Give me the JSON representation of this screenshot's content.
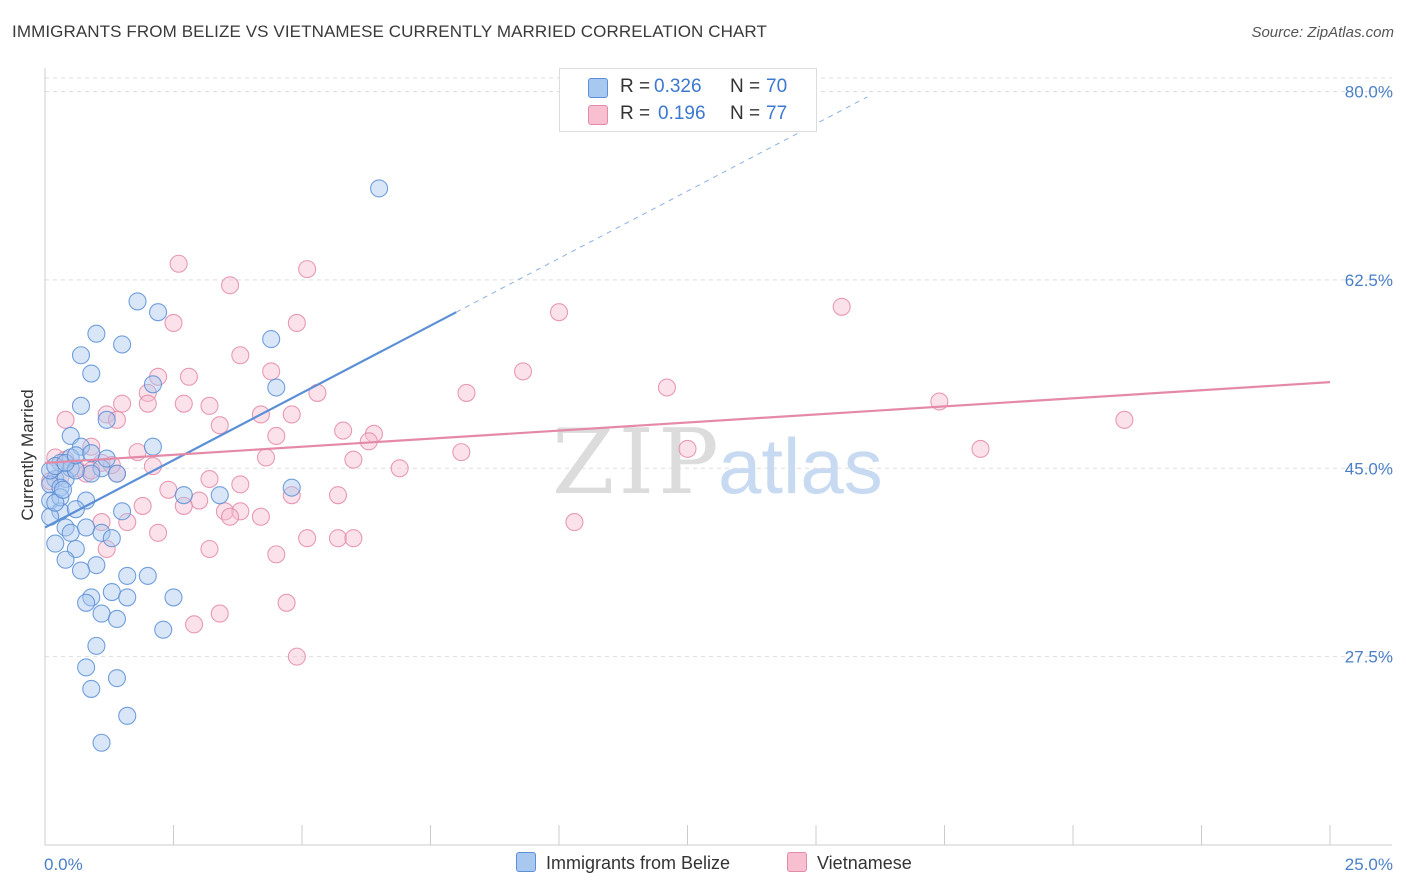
{
  "title": "IMMIGRANTS FROM BELIZE VS VIETNAMESE CURRENTLY MARRIED CORRELATION CHART",
  "source": "Source: ZipAtlas.com",
  "watermark": {
    "zip": "ZIP",
    "atlas": "atlas"
  },
  "legend": [
    {
      "r_label": "R =",
      "r_value": "0.326",
      "n_label": "N =",
      "n_value": "70",
      "color": "#a9c8f0",
      "stroke": "#5b8fd6"
    },
    {
      "r_label": "R =",
      "r_value": "0.196",
      "n_label": "N =",
      "n_value": "77",
      "color": "#f7bfd0",
      "stroke": "#e48aa8"
    }
  ],
  "bottom_legend": [
    {
      "label": "Immigrants from Belize",
      "color": "#a9c8f0",
      "stroke": "#5b8fd6"
    },
    {
      "label": "Vietnamese",
      "color": "#f7bfd0",
      "stroke": "#e48aa8"
    }
  ],
  "chart_data": {
    "type": "scatter",
    "xlabel": "",
    "ylabel": "Currently Married",
    "xlim": [
      0,
      25
    ],
    "ylim": [
      10,
      82
    ],
    "x_tick_labels": [
      "0.0%",
      "25.0%"
    ],
    "y_ticks": [
      27.5,
      45.0,
      62.5,
      80.0
    ],
    "y_tick_labels": [
      "27.5%",
      "45.0%",
      "62.5%",
      "80.0%"
    ],
    "grid": true,
    "series": [
      {
        "name": "Immigrants from Belize",
        "color": "#5b8fd6",
        "fill": "#a9c8f0",
        "trend": {
          "x": [
            0.0,
            8.0
          ],
          "y": [
            39.5,
            59.5
          ],
          "dashed_to": [
            16.0,
            79.5
          ]
        },
        "points": [
          [
            6.5,
            71.0
          ],
          [
            1.8,
            60.5
          ],
          [
            2.2,
            59.5
          ],
          [
            1.0,
            57.5
          ],
          [
            1.5,
            56.5
          ],
          [
            0.7,
            55.5
          ],
          [
            4.4,
            57.0
          ],
          [
            0.9,
            53.8
          ],
          [
            2.1,
            52.8
          ],
          [
            4.5,
            52.5
          ],
          [
            0.7,
            50.8
          ],
          [
            1.2,
            49.5
          ],
          [
            0.5,
            48.0
          ],
          [
            0.7,
            47.0
          ],
          [
            2.1,
            47.0
          ],
          [
            0.5,
            46.0
          ],
          [
            0.3,
            45.5
          ],
          [
            0.5,
            45.0
          ],
          [
            1.1,
            45.0
          ],
          [
            0.9,
            44.5
          ],
          [
            1.4,
            44.5
          ],
          [
            0.2,
            44.0
          ],
          [
            0.4,
            44.0
          ],
          [
            0.6,
            44.8
          ],
          [
            0.1,
            43.5
          ],
          [
            0.3,
            43.2
          ],
          [
            0.1,
            42.0
          ],
          [
            0.8,
            42.0
          ],
          [
            0.3,
            41.0
          ],
          [
            2.7,
            42.5
          ],
          [
            1.5,
            41.0
          ],
          [
            3.4,
            42.5
          ],
          [
            4.8,
            43.2
          ],
          [
            0.1,
            40.5
          ],
          [
            0.4,
            39.5
          ],
          [
            0.2,
            38.0
          ],
          [
            0.5,
            39.0
          ],
          [
            0.8,
            39.5
          ],
          [
            1.1,
            39.0
          ],
          [
            1.3,
            38.5
          ],
          [
            0.6,
            37.5
          ],
          [
            1.0,
            36.0
          ],
          [
            0.7,
            35.5
          ],
          [
            0.4,
            36.5
          ],
          [
            1.6,
            35.0
          ],
          [
            2.0,
            35.0
          ],
          [
            1.3,
            33.5
          ],
          [
            0.9,
            33.0
          ],
          [
            1.6,
            33.0
          ],
          [
            0.8,
            32.5
          ],
          [
            2.5,
            33.0
          ],
          [
            1.1,
            31.5
          ],
          [
            1.4,
            31.0
          ],
          [
            2.3,
            30.0
          ],
          [
            1.0,
            28.5
          ],
          [
            0.8,
            26.5
          ],
          [
            1.4,
            25.5
          ],
          [
            0.9,
            24.5
          ],
          [
            1.6,
            22.0
          ],
          [
            1.1,
            19.5
          ],
          [
            0.3,
            42.3
          ],
          [
            0.2,
            41.8
          ],
          [
            0.6,
            41.2
          ],
          [
            0.1,
            44.8
          ],
          [
            0.2,
            45.2
          ],
          [
            0.4,
            45.5
          ],
          [
            0.6,
            46.2
          ],
          [
            0.9,
            46.4
          ],
          [
            1.2,
            45.9
          ],
          [
            0.35,
            43.0
          ]
        ]
      },
      {
        "name": "Vietnamese",
        "color": "#e48aa8",
        "fill": "#f7bfd0",
        "trend": {
          "x": [
            0.0,
            25.0
          ],
          "y": [
            45.5,
            53.0
          ]
        },
        "points": [
          [
            2.6,
            64.0
          ],
          [
            5.1,
            63.5
          ],
          [
            3.6,
            62.0
          ],
          [
            15.5,
            60.0
          ],
          [
            10.0,
            59.5
          ],
          [
            2.5,
            58.5
          ],
          [
            4.9,
            58.5
          ],
          [
            3.8,
            55.5
          ],
          [
            4.4,
            54.0
          ],
          [
            2.8,
            53.5
          ],
          [
            2.2,
            53.5
          ],
          [
            9.3,
            54.0
          ],
          [
            12.1,
            52.5
          ],
          [
            2.0,
            52.0
          ],
          [
            5.3,
            52.0
          ],
          [
            8.2,
            52.0
          ],
          [
            1.5,
            51.0
          ],
          [
            2.0,
            51.0
          ],
          [
            17.4,
            51.2
          ],
          [
            2.7,
            51.0
          ],
          [
            3.2,
            50.8
          ],
          [
            4.2,
            50.0
          ],
          [
            4.8,
            50.0
          ],
          [
            1.2,
            50.0
          ],
          [
            1.4,
            49.5
          ],
          [
            0.4,
            49.5
          ],
          [
            21.0,
            49.5
          ],
          [
            3.4,
            49.0
          ],
          [
            5.8,
            48.5
          ],
          [
            6.4,
            48.2
          ],
          [
            4.5,
            48.0
          ],
          [
            6.3,
            47.5
          ],
          [
            0.9,
            47.0
          ],
          [
            1.8,
            46.5
          ],
          [
            8.1,
            46.5
          ],
          [
            12.5,
            46.8
          ],
          [
            18.2,
            46.8
          ],
          [
            4.3,
            46.0
          ],
          [
            6.0,
            45.8
          ],
          [
            1.1,
            45.5
          ],
          [
            0.6,
            45.0
          ],
          [
            2.1,
            45.2
          ],
          [
            6.9,
            45.0
          ],
          [
            1.4,
            44.5
          ],
          [
            3.2,
            44.0
          ],
          [
            0.8,
            44.5
          ],
          [
            3.8,
            43.5
          ],
          [
            2.4,
            43.0
          ],
          [
            4.8,
            42.5
          ],
          [
            3.0,
            42.0
          ],
          [
            5.7,
            42.5
          ],
          [
            1.9,
            41.5
          ],
          [
            2.7,
            41.5
          ],
          [
            3.5,
            41.0
          ],
          [
            3.8,
            41.0
          ],
          [
            3.6,
            40.5
          ],
          [
            4.2,
            40.5
          ],
          [
            1.1,
            40.0
          ],
          [
            1.6,
            40.0
          ],
          [
            10.3,
            40.0
          ],
          [
            2.2,
            39.0
          ],
          [
            5.1,
            38.5
          ],
          [
            5.7,
            38.5
          ],
          [
            6.0,
            38.5
          ],
          [
            3.2,
            37.5
          ],
          [
            1.2,
            37.5
          ],
          [
            4.5,
            37.0
          ],
          [
            4.7,
            32.5
          ],
          [
            3.4,
            31.5
          ],
          [
            2.9,
            30.5
          ],
          [
            4.9,
            27.5
          ],
          [
            0.2,
            46.0
          ],
          [
            0.4,
            45.8
          ],
          [
            0.1,
            43.8
          ],
          [
            0.3,
            44.2
          ],
          [
            0.9,
            44.8
          ],
          [
            1.3,
            45.3
          ]
        ]
      }
    ]
  }
}
